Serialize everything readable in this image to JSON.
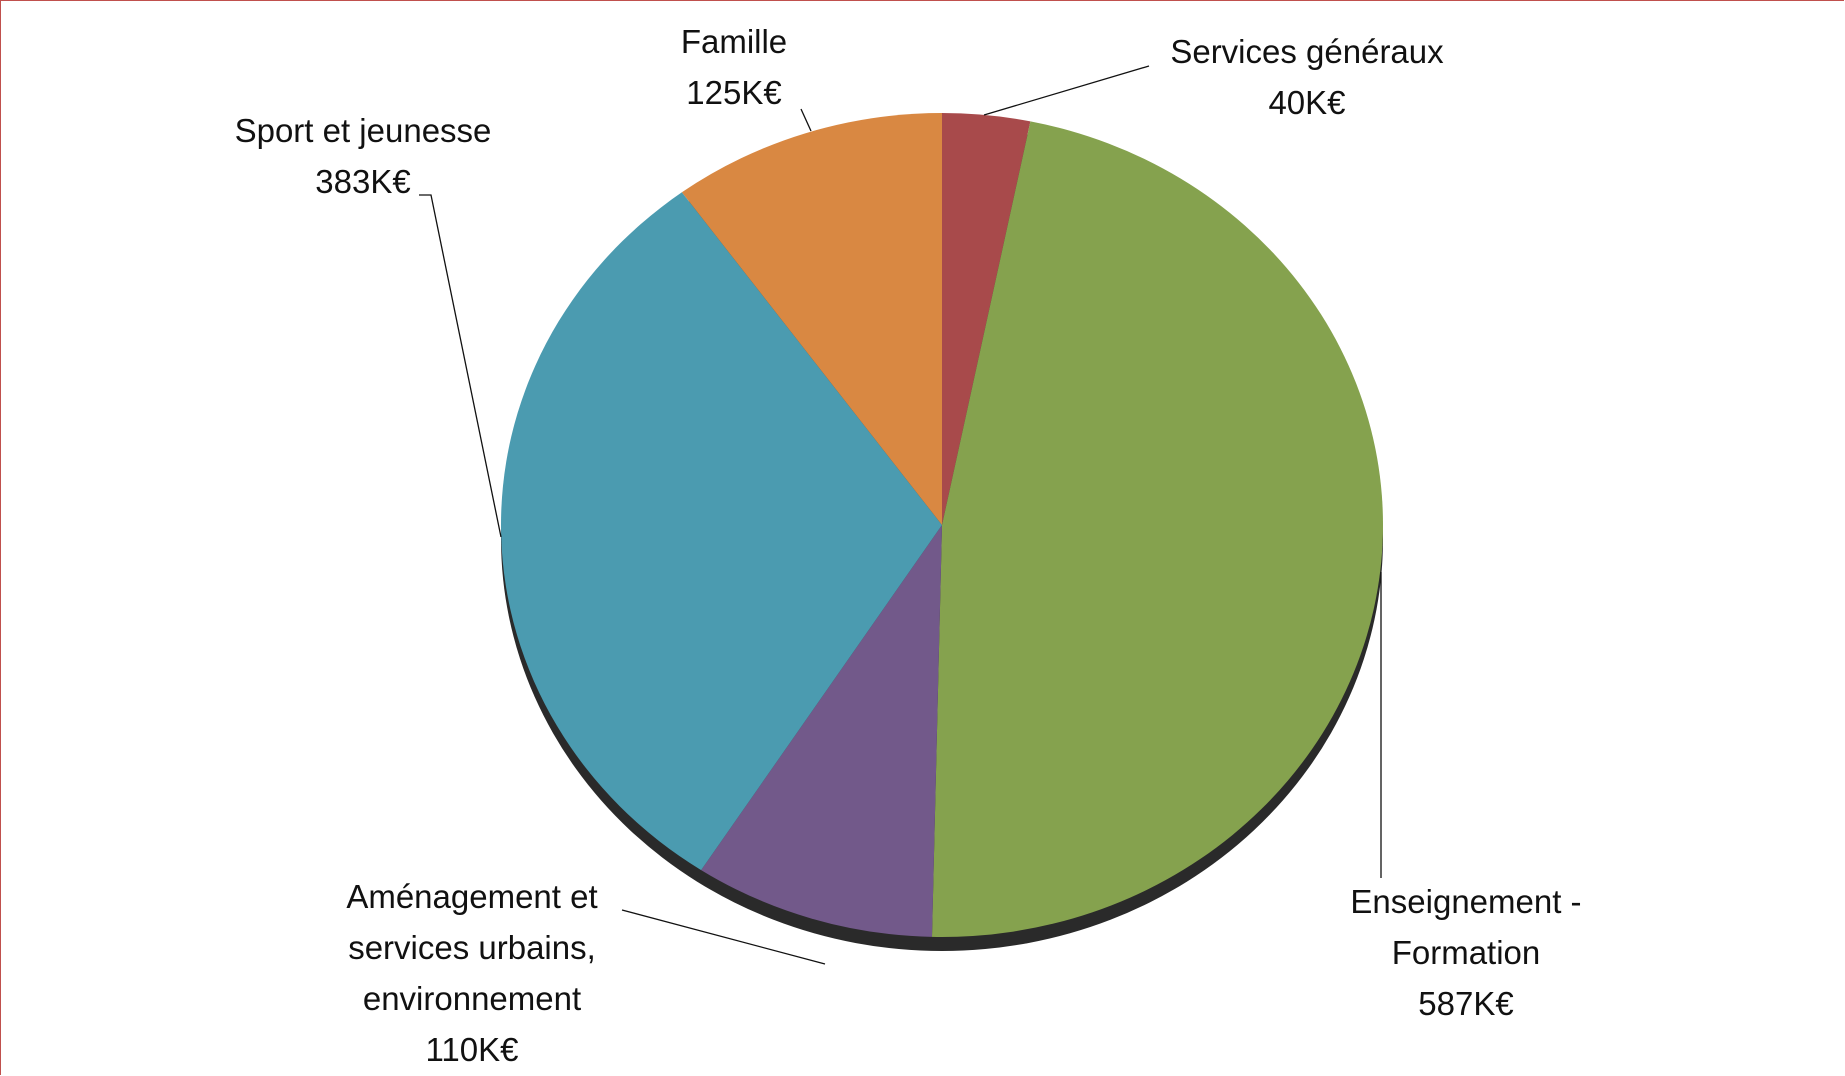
{
  "chart_data": {
    "type": "pie",
    "categories": [
      "Services généraux",
      "Enseignement - Formation",
      "Aménagement et services urbains, environnement",
      "Sport et jeunesse",
      "Famille"
    ],
    "values": [
      40,
      587,
      110,
      383,
      125
    ],
    "value_labels": [
      "40K€",
      "587K€",
      "110K€",
      "383K€",
      "125K€"
    ],
    "colors": [
      "#a84a4b",
      "#85a24e",
      "#72598a",
      "#4b9bb0",
      "#d98842"
    ]
  }
}
